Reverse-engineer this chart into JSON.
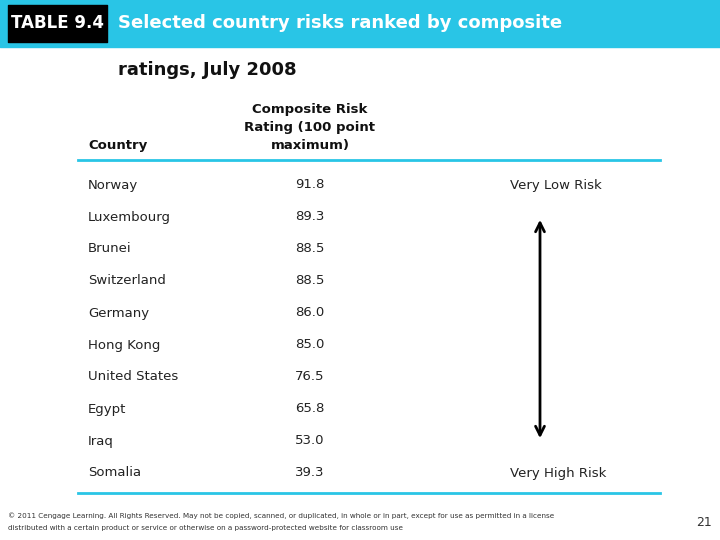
{
  "title_table": "TABLE 9.4",
  "title_text_line1": "Selected country risks ranked by composite",
  "title_subtitle": "ratings, July 2008",
  "header_col1": "Country",
  "header_col2_line1": "Composite Risk",
  "header_col2_line2": "Rating (100 point",
  "header_col2_line3": "maximum)",
  "countries": [
    "Norway",
    "Luxembourg",
    "Brunei",
    "Switzerland",
    "Germany",
    "Hong Kong",
    "United States",
    "Egypt",
    "Iraq",
    "Somalia"
  ],
  "ratings": [
    "91.8",
    "89.3",
    "88.5",
    "88.5",
    "86.0",
    "85.0",
    "76.5",
    "65.8",
    "53.0",
    "39.3"
  ],
  "arrow_label_top": "Very Low Risk",
  "arrow_label_bottom": "Very High Risk",
  "title_bg": "#29C5E6",
  "table_label_bg": "#000000",
  "table_label_color": "#FFFFFF",
  "title_color": "#FFFFFF",
  "body_bg": "#FFFFFF",
  "line_color": "#29C5E6",
  "footer_text_line1": "© 2011 Cengage Learning. All Rights Reserved. May not be copied, scanned, or duplicated, in whole or in part, except for use as permitted in a license",
  "footer_text_line2": "distributed with a certain product or service or otherwise on a password-protected website for classroom use",
  "page_number": "21",
  "fig_width": 7.2,
  "fig_height": 5.4,
  "dpi": 100
}
